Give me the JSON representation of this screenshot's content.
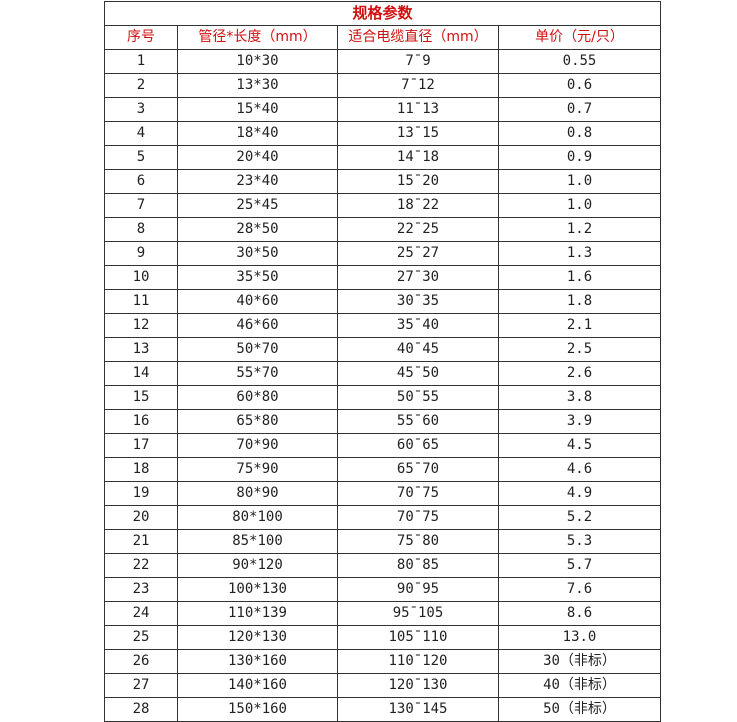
{
  "title": "规格参数",
  "headers": [
    "序号",
    "管径*长度（mm）",
    "适合电缆直径（mm）",
    "单价（元/只）"
  ],
  "rows": [
    [
      "1",
      "10*30",
      "7¯9",
      "0.55"
    ],
    [
      "2",
      "13*30",
      "7¯12",
      "0.6"
    ],
    [
      "3",
      "15*40",
      "11¯13",
      "0.7"
    ],
    [
      "4",
      "18*40",
      "13¯15",
      "0.8"
    ],
    [
      "5",
      "20*40",
      "14¯18",
      "0.9"
    ],
    [
      "6",
      "23*40",
      "15¯20",
      "1.0"
    ],
    [
      "7",
      "25*45",
      "18¯22",
      "1.0"
    ],
    [
      "8",
      "28*50",
      "22¯25",
      "1.2"
    ],
    [
      "9",
      "30*50",
      "25¯27",
      "1.3"
    ],
    [
      "10",
      "35*50",
      "27¯30",
      "1.6"
    ],
    [
      "11",
      "40*60",
      "30¯35",
      "1.8"
    ],
    [
      "12",
      "46*60",
      "35¯40",
      "2.1"
    ],
    [
      "13",
      "50*70",
      "40¯45",
      "2.5"
    ],
    [
      "14",
      "55*70",
      "45¯50",
      "2.6"
    ],
    [
      "15",
      "60*80",
      "50¯55",
      "3.8"
    ],
    [
      "16",
      "65*80",
      "55¯60",
      "3.9"
    ],
    [
      "17",
      "70*90",
      "60¯65",
      "4.5"
    ],
    [
      "18",
      "75*90",
      "65¯70",
      "4.6"
    ],
    [
      "19",
      "80*90",
      "70¯75",
      "4.9"
    ],
    [
      "20",
      "80*100",
      "70¯75",
      "5.2"
    ],
    [
      "21",
      "85*100",
      "75¯80",
      "5.3"
    ],
    [
      "22",
      "90*120",
      "80¯85",
      "5.7"
    ],
    [
      "23",
      "100*130",
      "90¯95",
      "7.6"
    ],
    [
      "24",
      "110*139",
      "95¯105",
      "8.6"
    ],
    [
      "25",
      "120*130",
      "105¯110",
      "13.0"
    ],
    [
      "26",
      "130*160",
      "110¯120",
      "30（非标）"
    ],
    [
      "27",
      "140*160",
      "120¯130",
      "40（非标）"
    ],
    [
      "28",
      "150*160",
      "130¯145",
      "50（非标）"
    ]
  ],
  "colors": {
    "header_text": "#d01010",
    "border": "#333333"
  }
}
